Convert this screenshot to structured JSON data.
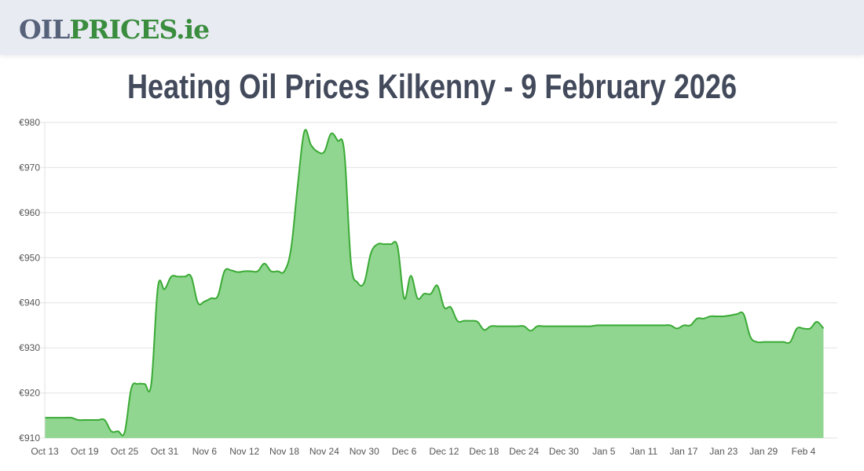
{
  "header": {
    "logo_part1": "OIL",
    "logo_part2": "PRICES.ie"
  },
  "page": {
    "title": "Heating Oil Prices Kilkenny - 9 February 2026"
  },
  "colors": {
    "line": "#3aaa35",
    "fill": "#90d690",
    "grid": "#e2e2e2",
    "title": "#424a5b",
    "logo_dark": "#56627a",
    "logo_green": "#3a8d3e"
  },
  "chart_data": {
    "type": "area",
    "title": "Heating Oil Prices Kilkenny - 9 February 2026",
    "xlabel": "",
    "ylabel": "",
    "ylim": [
      910,
      980
    ],
    "yticks": [
      910,
      920,
      930,
      940,
      950,
      960,
      970,
      980
    ],
    "ytick_labels": [
      "€910",
      "€920",
      "€930",
      "€940",
      "€950",
      "€960",
      "€970",
      "€980"
    ],
    "xtick_labels": [
      "Oct 13",
      "Oct 19",
      "Oct 25",
      "Oct 31",
      "Nov 6",
      "Nov 12",
      "Nov 18",
      "Nov 24",
      "Nov 30",
      "Dec 6",
      "Dec 12",
      "Dec 18",
      "Dec 24",
      "Dec 30",
      "Jan 5",
      "Jan 11",
      "Jan 17",
      "Jan 23",
      "Jan 29",
      "Feb 4"
    ],
    "grid": true,
    "legend": "none",
    "x_start": "Oct 13",
    "x_end": "Feb 9",
    "series": [
      {
        "name": "Kilkenny heating oil price (€)",
        "values": [
          914.5,
          914.5,
          914.5,
          914.5,
          914.5,
          914.0,
          914.0,
          914.0,
          914.0,
          914.0,
          911.5,
          911.5,
          911.3,
          921.0,
          922.0,
          922.0,
          922.0,
          943.5,
          943.0,
          945.8,
          945.8,
          945.8,
          945.8,
          940.0,
          940.3,
          941.0,
          941.5,
          947.0,
          947.2,
          946.8,
          947.0,
          947.0,
          947.0,
          948.7,
          947.0,
          947.0,
          947.0,
          952.0,
          966.0,
          978.0,
          975.0,
          973.5,
          973.5,
          977.5,
          976.0,
          973.5,
          949.0,
          944.5,
          944.5,
          951.0,
          953.0,
          953.0,
          953.0,
          952.5,
          941.0,
          946.0,
          941.0,
          942.0,
          942.0,
          943.8,
          939.0,
          939.0,
          936.0,
          936.0,
          936.0,
          935.8,
          934.0,
          934.8,
          934.8,
          934.8,
          934.8,
          934.8,
          934.8,
          933.8,
          934.8,
          934.8,
          934.8,
          934.8,
          934.8,
          934.8,
          934.8,
          934.8,
          934.8,
          935.0,
          935.0,
          935.0,
          935.0,
          935.0,
          935.0,
          935.0,
          935.0,
          935.0,
          935.0,
          935.0,
          935.0,
          934.3,
          935.0,
          935.0,
          936.5,
          936.5,
          937.0,
          937.0,
          937.0,
          937.2,
          937.5,
          937.5,
          932.5,
          931.3,
          931.3,
          931.3,
          931.3,
          931.3,
          931.3,
          934.3,
          934.3,
          934.3,
          935.8,
          934.3
        ]
      }
    ]
  }
}
